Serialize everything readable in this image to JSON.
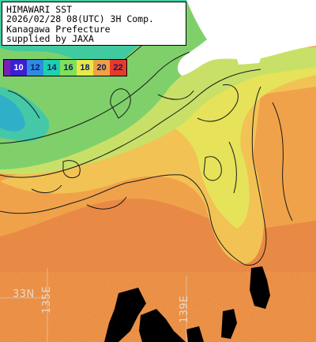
{
  "info": {
    "title": "HIMAWARI SST",
    "datetime": "2026/02/28 08(UTC) 3H Comp.",
    "org": "Kanagawa Prefecture",
    "credit": "supplied by JAXA"
  },
  "legend": {
    "items": [
      {
        "label": "",
        "color": "#7a1fb0",
        "text_color": "#ffffff"
      },
      {
        "label": "10",
        "color": "#3a1fd4",
        "text_color": "#ffffff"
      },
      {
        "label": "12",
        "color": "#2e8be0",
        "text_color": "#0b1a6b"
      },
      {
        "label": "14",
        "color": "#1fd0b0",
        "text_color": "#0b1a6b"
      },
      {
        "label": "16",
        "color": "#7fe05a",
        "text_color": "#0b1a6b"
      },
      {
        "label": "18",
        "color": "#e8e84a",
        "text_color": "#0b1a6b"
      },
      {
        "label": "20",
        "color": "#f0a045",
        "text_color": "#0b1a6b"
      },
      {
        "label": "22",
        "color": "#e83a2a",
        "text_color": "#0b1a6b"
      }
    ]
  },
  "graticule": {
    "lon_left": "135E",
    "lat_left": "33N",
    "lon_mid": "139E"
  }
}
